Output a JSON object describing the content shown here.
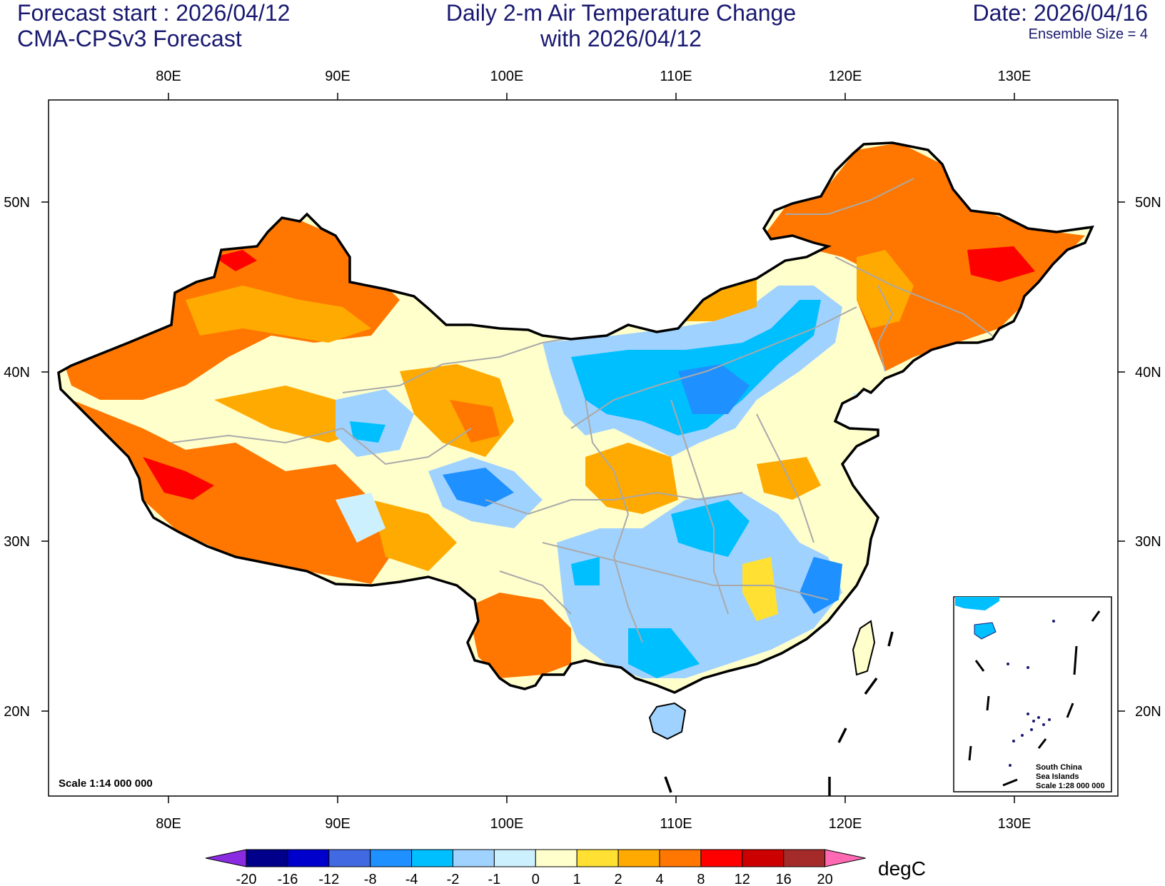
{
  "header": {
    "forecast_start": "Forecast start : 2026/04/12",
    "model": "CMA-CPSv3 Forecast",
    "title_line1": "Daily 2-m Air Temperature Change",
    "title_line2": "with 2026/04/12",
    "date": "Date: 2026/04/16",
    "ensemble": "Ensemble Size = 4"
  },
  "axes": {
    "lon_labels": [
      "80E",
      "90E",
      "100E",
      "110E",
      "120E",
      "130E"
    ],
    "lat_labels": [
      "50N",
      "40N",
      "30N",
      "20N"
    ]
  },
  "scale_label": "Scale 1:14 000 000",
  "inset": {
    "line1": "South China",
    "line2": "Sea Islands",
    "line3": "Scale 1:28 000 000"
  },
  "colorbar": {
    "unit": "degC",
    "labels": [
      "-20",
      "-16",
      "-12",
      "-8",
      "-4",
      "-2",
      "-1",
      "0",
      "1",
      "2",
      "4",
      "8",
      "12",
      "16",
      "20"
    ],
    "colors": [
      "#00008b",
      "#0000cd",
      "#4169e1",
      "#1e90ff",
      "#00bfff",
      "#a0d2ff",
      "#cdf0ff",
      "#ffffcc",
      "#ffe033",
      "#ffaa00",
      "#ff7700",
      "#ff0000",
      "#cc0000",
      "#a52a2a"
    ],
    "under_color": "#8a2be2",
    "over_color": "#ff69b4"
  }
}
